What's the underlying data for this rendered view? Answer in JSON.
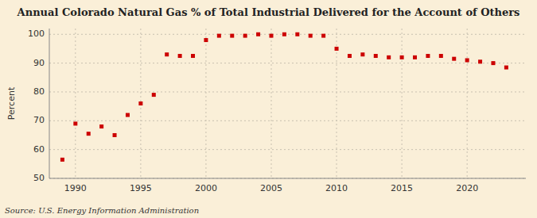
{
  "chart_data": {
    "type": "scatter",
    "title": "Annual Colorado Natural Gas % of Total Industrial Delivered for the Account of Others",
    "y_label": "Percent",
    "source": "Source: U.S. Energy Information Administration",
    "x": [
      1989,
      1990,
      1991,
      1992,
      1993,
      1994,
      1995,
      1996,
      1997,
      1998,
      1999,
      2000,
      2001,
      2002,
      2003,
      2004,
      2005,
      2006,
      2007,
      2008,
      2009,
      2010,
      2011,
      2012,
      2013,
      2014,
      2015,
      2016,
      2017,
      2018,
      2019,
      2020,
      2021,
      2022,
      2023
    ],
    "values": [
      56.5,
      69.0,
      65.5,
      68.0,
      65.0,
      72.0,
      76.0,
      79.0,
      93.0,
      92.5,
      92.5,
      98.0,
      99.5,
      99.5,
      99.5,
      100.0,
      99.5,
      100.0,
      100.0,
      99.5,
      99.5,
      95.0,
      92.5,
      93.0,
      92.5,
      92.0,
      92.0,
      92.0,
      92.5,
      92.5,
      91.5,
      91.0,
      90.5,
      90.0,
      88.5
    ],
    "color": "#cc0000",
    "marker": "square",
    "xlim": [
      1988.0,
      2024.5
    ],
    "ylim": [
      50,
      102
    ],
    "xticks": [
      1990,
      1995,
      2000,
      2005,
      2010,
      2015,
      2020
    ],
    "yticks": [
      50,
      60,
      70,
      80,
      90,
      100
    ],
    "grid": true
  }
}
